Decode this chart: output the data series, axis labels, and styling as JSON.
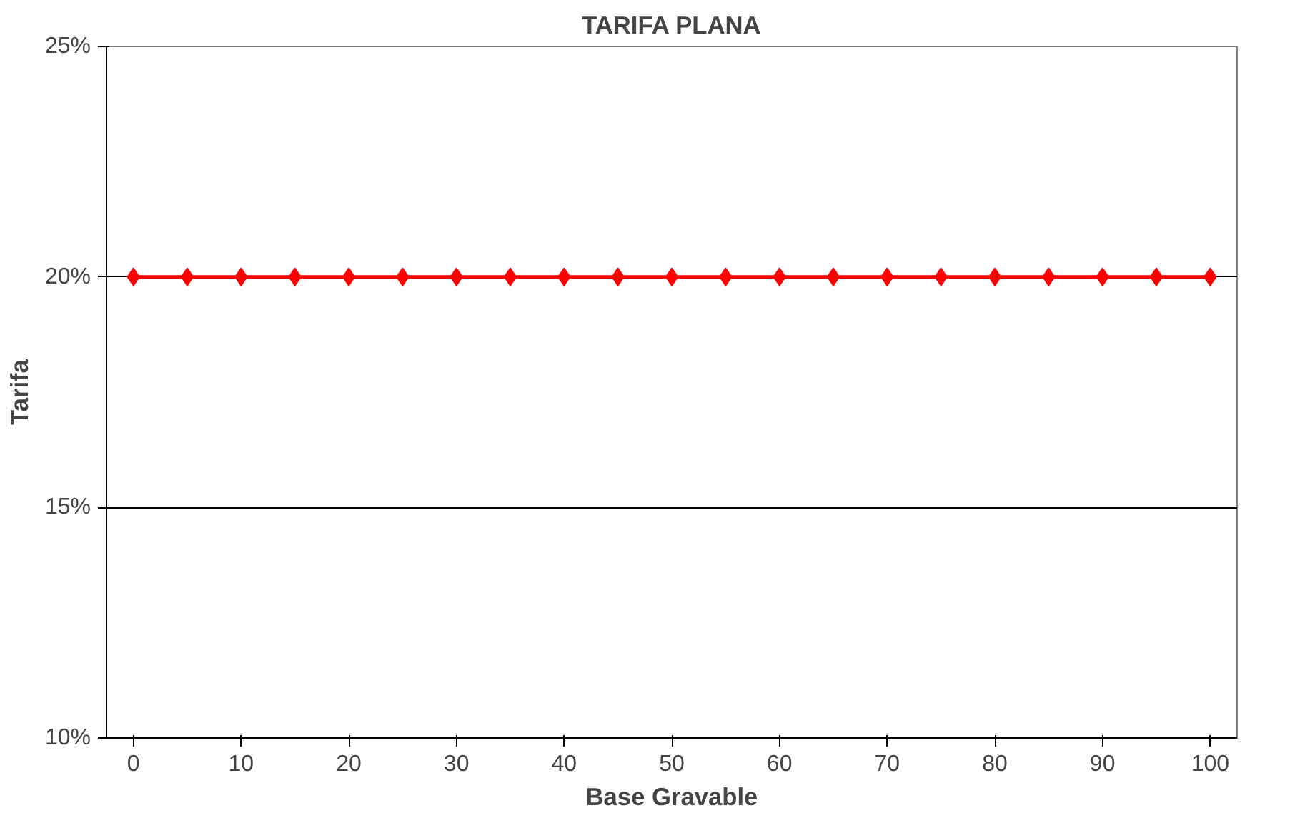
{
  "chart_data": {
    "type": "line",
    "title": "TARIFA PLANA",
    "xlabel": "Base Gravable",
    "ylabel": "Tarifa",
    "categories": [
      "0",
      null,
      "10",
      null,
      "20",
      null,
      "30",
      null,
      "40",
      null,
      "50",
      null,
      "60",
      null,
      "70",
      null,
      "80",
      null,
      "90",
      null,
      "100"
    ],
    "series": [
      {
        "color": "#ff0000",
        "values": [
          20,
          20,
          20,
          20,
          20,
          20,
          20,
          20,
          20,
          20,
          20,
          20,
          20,
          20,
          20,
          20,
          20,
          20,
          20,
          20,
          20
        ]
      }
    ],
    "ylim": [
      10,
      25
    ],
    "yticks": [
      {
        "value": 10,
        "label": "10%"
      },
      {
        "value": 15,
        "label": "15%"
      },
      {
        "value": 20,
        "label": "20%"
      },
      {
        "value": 25,
        "label": "25%"
      }
    ],
    "grid": "y",
    "marker": "diamond"
  }
}
